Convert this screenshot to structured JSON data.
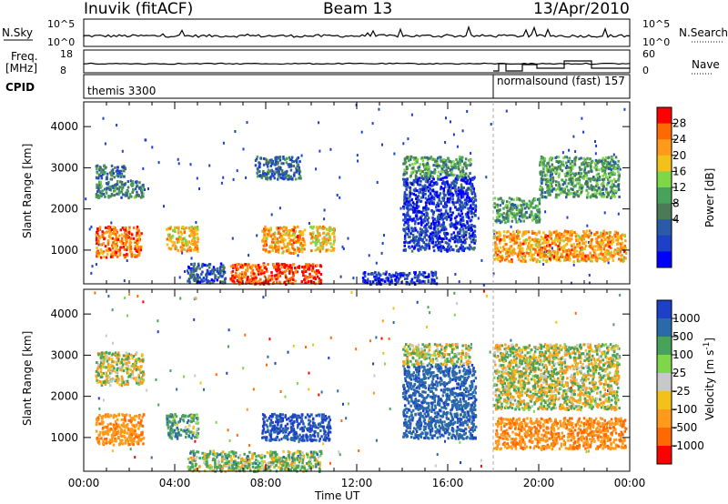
{
  "header": {
    "station": "Inuvik (fitACF)",
    "beam": "Beam 13",
    "date": "13/Apr/2010"
  },
  "strips": {
    "nsky_label": "N.Sky",
    "nsky_ticks": [
      "10^5",
      "10^0"
    ],
    "nsearch_label": "N.Search",
    "nsearch_ticks": [
      "10^5",
      "10^0"
    ],
    "freq_label_line1": "Freq.",
    "freq_label_line2": "[MHz]",
    "freq_ticks": [
      "18",
      "8"
    ],
    "nave_label": "Nave",
    "nave_ticks": [
      "60",
      "0"
    ],
    "cpid_label": "CPID",
    "cpid_segments": [
      {
        "text": "themis 3300",
        "start_hour": 0
      },
      {
        "text": "normalsound (fast) 157",
        "start_hour": 18
      }
    ]
  },
  "chart_data": [
    {
      "type": "heatmap",
      "ylabel": "Slant Range [km]",
      "xlabel": "",
      "colorbar_label": "Power [dB]",
      "colorbar_ticks": [
        "28",
        "24",
        "20",
        "16",
        "12",
        "8",
        "4"
      ],
      "colorbar_colors": [
        "#ff0000",
        "#ff6a00",
        "#ff9a1a",
        "#f2c21a",
        "#7fd64a",
        "#49a25a",
        "#4a7a56",
        "#2a5aa8",
        "#1e40c8",
        "#0000ff"
      ],
      "ylim": [
        180,
        4600
      ],
      "yticks": [
        1000,
        2000,
        3000,
        4000
      ],
      "xlim_hours": [
        0,
        24
      ],
      "bands": [
        {
          "t0": 0.5,
          "t1": 2.5,
          "r0": 850,
          "r1": 1600,
          "power_db": 26
        },
        {
          "t0": 0.5,
          "t1": 1.8,
          "r0": 2750,
          "r1": 3100,
          "power_db": 10
        },
        {
          "t0": 0.5,
          "t1": 2.6,
          "r0": 2300,
          "r1": 2700,
          "power_db": 12
        },
        {
          "t0": 3.6,
          "t1": 5.0,
          "r0": 1000,
          "r1": 1600,
          "power_db": 22
        },
        {
          "t0": 4.5,
          "t1": 6.2,
          "r0": 230,
          "r1": 700,
          "power_db": 8
        },
        {
          "t0": 6.4,
          "t1": 10.4,
          "r0": 200,
          "r1": 700,
          "power_db": 28
        },
        {
          "t0": 7.8,
          "t1": 9.7,
          "r0": 950,
          "r1": 1600,
          "power_db": 24
        },
        {
          "t0": 9.9,
          "t1": 11.0,
          "r0": 1000,
          "r1": 1600,
          "power_db": 22
        },
        {
          "t0": 7.5,
          "t1": 9.5,
          "r0": 2750,
          "r1": 3300,
          "power_db": 10
        },
        {
          "t0": 12.2,
          "t1": 15.5,
          "r0": 200,
          "r1": 500,
          "power_db": 6
        },
        {
          "t0": 14.0,
          "t1": 17.2,
          "r0": 1000,
          "r1": 2800,
          "power_db": 6
        },
        {
          "t0": 14.0,
          "t1": 17.0,
          "r0": 2800,
          "r1": 3300,
          "power_db": 14
        },
        {
          "t0": 18.0,
          "t1": 23.8,
          "r0": 750,
          "r1": 1500,
          "power_db": 24
        },
        {
          "t0": 18.0,
          "t1": 20.0,
          "r0": 1700,
          "r1": 2300,
          "power_db": 14
        },
        {
          "t0": 20.0,
          "t1": 23.5,
          "r0": 2300,
          "r1": 3300,
          "power_db": 14
        }
      ]
    },
    {
      "type": "heatmap",
      "ylabel": "Slant Range [km]",
      "xlabel": "Time UT",
      "colorbar_label": "Velocity [m s^-1]",
      "colorbar_ticks": [
        "1000",
        "500",
        "100",
        "25",
        "-25",
        "-100",
        "-500",
        "-1000"
      ],
      "colorbar_colors": [
        "#1e40c8",
        "#2a6aa8",
        "#49a25a",
        "#7fd64a",
        "#c8c8c8",
        "#f2c21a",
        "#ff9a1a",
        "#ff6a00",
        "#ff0000"
      ],
      "ylim": [
        180,
        4600
      ],
      "yticks": [
        1000,
        2000,
        3000,
        4000
      ],
      "xticks": [
        "00:00",
        "04:00",
        "08:00",
        "12:00",
        "16:00",
        "20:00",
        "00:00"
      ],
      "xlim_hours": [
        0,
        24
      ],
      "bands": [
        {
          "t0": 0.5,
          "t1": 2.6,
          "r0": 850,
          "r1": 1600,
          "velocity": -400
        },
        {
          "t0": 0.5,
          "t1": 2.6,
          "r0": 2300,
          "r1": 3100,
          "velocity": 0
        },
        {
          "t0": 3.6,
          "t1": 5.0,
          "r0": 1000,
          "r1": 1600,
          "velocity": 200
        },
        {
          "t0": 4.5,
          "t1": 10.4,
          "r0": 200,
          "r1": 700,
          "velocity": 80
        },
        {
          "t0": 7.8,
          "t1": 10.8,
          "r0": 950,
          "r1": 1600,
          "velocity": 800
        },
        {
          "t0": 14.0,
          "t1": 17.2,
          "r0": 1000,
          "r1": 2800,
          "velocity": 600
        },
        {
          "t0": 14.0,
          "t1": 17.0,
          "r0": 2800,
          "r1": 3300,
          "velocity": 0
        },
        {
          "t0": 18.0,
          "t1": 23.8,
          "r0": 750,
          "r1": 1500,
          "velocity": -450
        },
        {
          "t0": 18.0,
          "t1": 23.5,
          "r0": 1700,
          "r1": 3300,
          "velocity": 0
        }
      ]
    }
  ]
}
